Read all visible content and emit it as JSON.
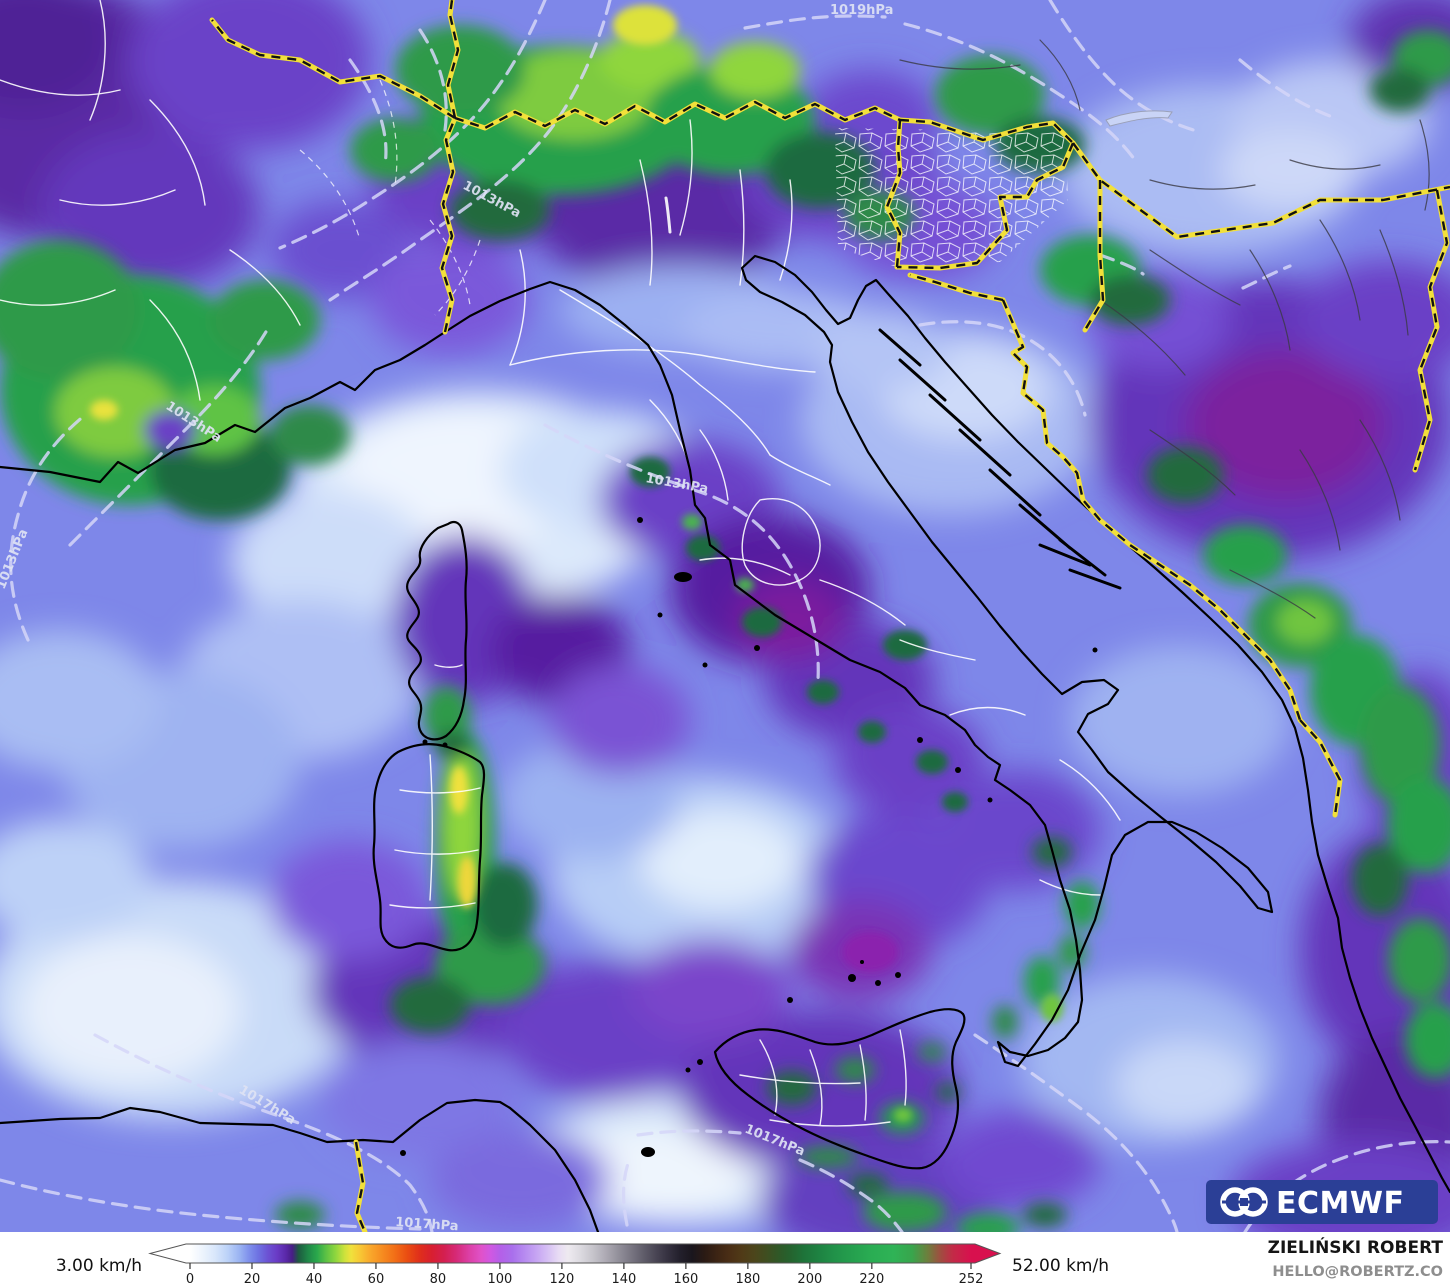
{
  "map": {
    "isobar_labels": [
      {
        "text": "1019hPa"
      },
      {
        "text": "1013hPa"
      },
      {
        "text": "1013hPa"
      },
      {
        "text": "1013hPa"
      },
      {
        "text": "1013hPa"
      },
      {
        "text": "1017hPa"
      },
      {
        "text": "1017hPa"
      },
      {
        "text": "1017hPa"
      }
    ]
  },
  "legend": {
    "min_label": "3.00 km/h",
    "max_label": "52.00 km/h",
    "ticks": [
      0,
      20,
      40,
      60,
      80,
      100,
      120,
      140,
      160,
      180,
      200,
      220,
      252
    ],
    "stops": [
      [
        0,
        "#ffffff"
      ],
      [
        4,
        "#edf4fd"
      ],
      [
        8,
        "#d9e7fb"
      ],
      [
        12,
        "#bdd3f8"
      ],
      [
        16,
        "#9ab3f2"
      ],
      [
        19,
        "#7f90ec"
      ],
      [
        22,
        "#6e72e2"
      ],
      [
        25,
        "#6c53d4"
      ],
      [
        28,
        "#6a3cc6"
      ],
      [
        31,
        "#5a28a8"
      ],
      [
        33,
        "#471e85"
      ],
      [
        35,
        "#1e5a40"
      ],
      [
        38,
        "#1f8748"
      ],
      [
        41,
        "#2aa84c"
      ],
      [
        44,
        "#5ec244"
      ],
      [
        47,
        "#8fd63e"
      ],
      [
        50,
        "#cfe23c"
      ],
      [
        52,
        "#f0e13c"
      ],
      [
        55,
        "#f8c634"
      ],
      [
        58,
        "#f9a92c"
      ],
      [
        62,
        "#f68c20"
      ],
      [
        66,
        "#f26f17"
      ],
      [
        70,
        "#ea4e12"
      ],
      [
        74,
        "#e02f1b"
      ],
      [
        78,
        "#d81f30"
      ],
      [
        82,
        "#d41f50"
      ],
      [
        86,
        "#d62a78"
      ],
      [
        90,
        "#dc3fa5"
      ],
      [
        94,
        "#e052c9"
      ],
      [
        97,
        "#d058e2"
      ],
      [
        100,
        "#b55fe8"
      ],
      [
        104,
        "#a96fec"
      ],
      [
        108,
        "#b78bf0"
      ],
      [
        112,
        "#c7a6f3"
      ],
      [
        116,
        "#d9c4f4"
      ],
      [
        119,
        "#e8dcf4"
      ],
      [
        122,
        "#eeeaf0"
      ],
      [
        126,
        "#dcdae0"
      ],
      [
        130,
        "#c6c4cb"
      ],
      [
        134,
        "#aeabb5"
      ],
      [
        138,
        "#94919c"
      ],
      [
        142,
        "#7b7884"
      ],
      [
        146,
        "#625f6c"
      ],
      [
        150,
        "#4b4756"
      ],
      [
        154,
        "#363241"
      ],
      [
        158,
        "#23202c"
      ],
      [
        162,
        "#1a161d"
      ],
      [
        166,
        "#2a1a14"
      ],
      [
        170,
        "#3c2414"
      ],
      [
        174,
        "#4a2e15"
      ],
      [
        178,
        "#503a17"
      ],
      [
        182,
        "#4c451b"
      ],
      [
        186,
        "#3f4e20"
      ],
      [
        190,
        "#2f5827"
      ],
      [
        194,
        "#24642f"
      ],
      [
        198,
        "#1e7339"
      ],
      [
        203,
        "#1e8342"
      ],
      [
        208,
        "#219249"
      ],
      [
        214,
        "#25a04e"
      ],
      [
        220,
        "#2aad53"
      ],
      [
        227,
        "#2fb356"
      ],
      [
        233,
        "#38a54c"
      ],
      [
        238,
        "#6d7f3d"
      ],
      [
        242,
        "#9e4f40"
      ],
      [
        246,
        "#c22b47"
      ],
      [
        252,
        "#d8104e"
      ]
    ],
    "value_max": 252
  },
  "attribution": {
    "name": "ZIELIŃSKI ROBERT",
    "email": "HELLO@ROBERTZ.CO"
  },
  "logo": {
    "text": "ECMWF"
  },
  "colors": {
    "base_field": "#7e87e9",
    "border_country": "#f2e03a",
    "border_admin": "#ffffff",
    "coastline": "#000000",
    "isobar": "#d5d6f8",
    "logo_bg": "#2b3f96"
  }
}
